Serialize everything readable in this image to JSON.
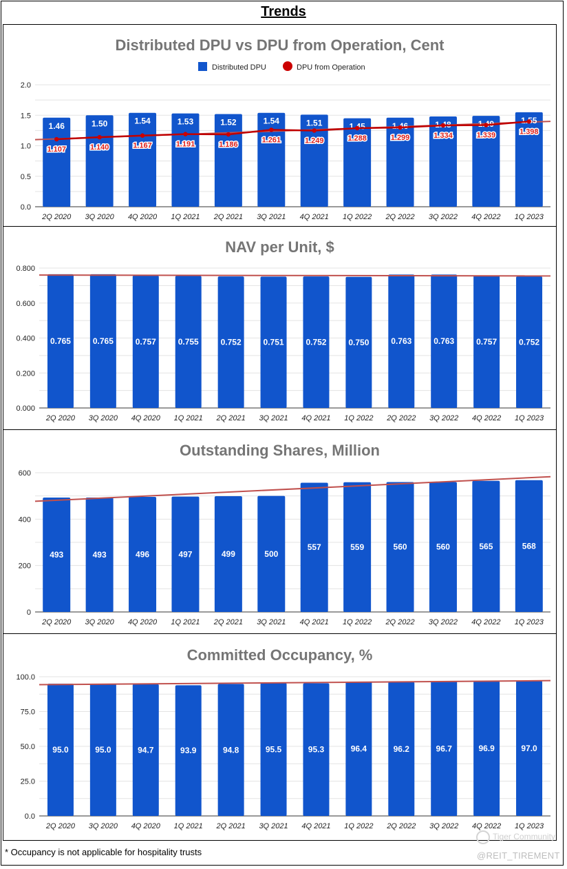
{
  "page_title": "Trends",
  "footnote": "* Occupancy is not applicable for hospitality trusts",
  "watermark": {
    "line1": "Tiger Community",
    "line2": "@REIT_TIREMENT"
  },
  "colors": {
    "bar": "#1155cc",
    "line": "#c00000",
    "trend": "#c0504d",
    "marker": "#cc0000"
  },
  "chart_data": [
    {
      "type": "bar",
      "title": "Distributed DPU vs DPU from Operation, Cent",
      "categories": [
        "2Q 2020",
        "3Q 2020",
        "4Q 2020",
        "1Q 2021",
        "2Q 2021",
        "3Q 2021",
        "4Q 2021",
        "1Q 2022",
        "2Q 2022",
        "3Q 2022",
        "4Q 2022",
        "1Q 2023"
      ],
      "series": [
        {
          "name": "Distributed DPU",
          "type": "bar",
          "values": [
            1.46,
            1.5,
            1.54,
            1.53,
            1.52,
            1.54,
            1.51,
            1.45,
            1.46,
            1.48,
            1.49,
            1.55
          ],
          "labels": [
            "1.46",
            "1.50",
            "1.54",
            "1.53",
            "1.52",
            "1.54",
            "1.51",
            "1.45",
            "1.46",
            "1.48",
            "1.49",
            "1.55"
          ]
        },
        {
          "name": "DPU from Operation",
          "type": "line",
          "values": [
            1.107,
            1.14,
            1.167,
            1.191,
            1.186,
            1.261,
            1.249,
            1.288,
            1.299,
            1.334,
            1.339,
            1.398
          ],
          "labels": [
            "1.107",
            "1.140",
            "1.167",
            "1.191",
            "1.186",
            "1.261",
            "1.249",
            "1.288",
            "1.299",
            "1.334",
            "1.339",
            "1.398"
          ]
        }
      ],
      "trendline": {
        "start": 1.1,
        "end": 1.4
      },
      "ylim": [
        0,
        2.0
      ],
      "yticks": [
        "0.0",
        "0.5",
        "1.0",
        "1.5",
        "2.0"
      ],
      "ytick_values": [
        0,
        0.5,
        1.0,
        1.5,
        2.0
      ],
      "legend": "top-center",
      "grid": true
    },
    {
      "type": "bar",
      "title": "NAV per Unit, $",
      "categories": [
        "2Q 2020",
        "3Q 2020",
        "4Q 2020",
        "1Q 2021",
        "2Q 2021",
        "3Q 2021",
        "4Q 2021",
        "1Q 2022",
        "2Q 2022",
        "3Q 2022",
        "4Q 2022",
        "1Q 2023"
      ],
      "series": [
        {
          "name": "",
          "type": "bar",
          "values": [
            0.765,
            0.765,
            0.757,
            0.755,
            0.752,
            0.751,
            0.752,
            0.75,
            0.763,
            0.763,
            0.757,
            0.752
          ],
          "labels": [
            "0.765",
            "0.765",
            "0.757",
            "0.755",
            "0.752",
            "0.751",
            "0.752",
            "0.750",
            "0.763",
            "0.763",
            "0.757",
            "0.752"
          ]
        }
      ],
      "trendline": {
        "start": 0.76,
        "end": 0.755
      },
      "ylim": [
        0,
        0.8
      ],
      "yticks": [
        "0.000",
        "0.200",
        "0.400",
        "0.600",
        "0.800"
      ],
      "ytick_values": [
        0,
        0.2,
        0.4,
        0.6,
        0.8
      ],
      "grid": true
    },
    {
      "type": "bar",
      "title": "Outstanding Shares, Million",
      "categories": [
        "2Q 2020",
        "3Q 2020",
        "4Q 2020",
        "1Q 2021",
        "2Q 2021",
        "3Q 2021",
        "4Q 2021",
        "1Q 2022",
        "2Q 2022",
        "3Q 2022",
        "4Q 2022",
        "1Q 2023"
      ],
      "series": [
        {
          "name": "",
          "type": "bar",
          "values": [
            493,
            493,
            496,
            497,
            499,
            500,
            557,
            559,
            560,
            560,
            565,
            568
          ],
          "labels": [
            "493",
            "493",
            "496",
            "497",
            "499",
            "500",
            "557",
            "559",
            "560",
            "560",
            "565",
            "568"
          ]
        }
      ],
      "trendline": {
        "start": 477,
        "end": 583
      },
      "ylim": [
        0,
        600
      ],
      "yticks": [
        "0",
        "200",
        "400",
        "600"
      ],
      "ytick_values": [
        0,
        200,
        400,
        600
      ],
      "grid": true
    },
    {
      "type": "bar",
      "title": "Committed Occupancy, %",
      "categories": [
        "2Q 2020",
        "3Q 2020",
        "4Q 2020",
        "1Q 2021",
        "2Q 2021",
        "3Q 2021",
        "4Q 2021",
        "1Q 2022",
        "2Q 2022",
        "3Q 2022",
        "4Q 2022",
        "1Q 2023"
      ],
      "series": [
        {
          "name": "",
          "type": "bar",
          "values": [
            95.0,
            95.0,
            94.7,
            93.9,
            94.8,
            95.5,
            95.3,
            96.4,
            96.2,
            96.7,
            96.9,
            97.0
          ],
          "labels": [
            "95.0",
            "95.0",
            "94.7",
            "93.9",
            "94.8",
            "95.5",
            "95.3",
            "96.4",
            "96.2",
            "96.7",
            "96.9",
            "97.0"
          ]
        }
      ],
      "trendline": {
        "start": 94.3,
        "end": 97.2
      },
      "ylim": [
        0,
        100
      ],
      "yticks": [
        "0.0",
        "25.0",
        "50.0",
        "75.0",
        "100.0"
      ],
      "ytick_values": [
        0,
        25,
        50,
        75,
        100
      ],
      "grid": true
    }
  ]
}
